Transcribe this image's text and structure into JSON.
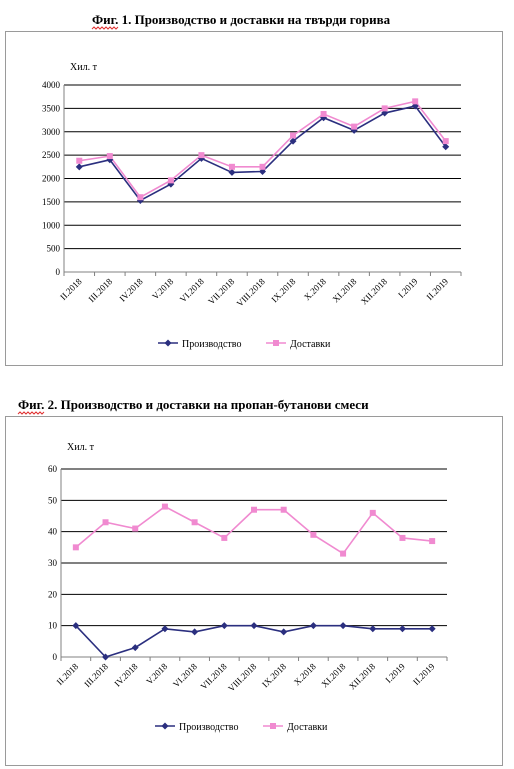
{
  "chart_data": [
    {
      "type": "line",
      "title": "Фиг. 1. Производство и доставки на твърди горива",
      "ylabel": "Хил. т",
      "categories": [
        "II.2018",
        "III.2018",
        "IV.2018",
        "V.2018",
        "VI.2018",
        "VII.2018",
        "VIII.2018",
        "IX.2018",
        "X.2018",
        "XI.2018",
        "XII.2018",
        "I.2019",
        "II.2019"
      ],
      "ylim": [
        0,
        4000
      ],
      "yticks": [
        0,
        500,
        1000,
        1500,
        2000,
        2500,
        3000,
        3500,
        4000
      ],
      "grid": true,
      "legend": "bottom",
      "series": [
        {
          "name": "Производство",
          "color": "#2b2f7f",
          "marker": "diamond",
          "values": [
            2250,
            2400,
            1530,
            1880,
            2430,
            2130,
            2150,
            2800,
            3300,
            3030,
            3400,
            3550,
            2680
          ]
        },
        {
          "name": "Доставки",
          "color": "#f08ad0",
          "marker": "square",
          "values": [
            2380,
            2480,
            1600,
            1960,
            2500,
            2250,
            2250,
            2920,
            3380,
            3110,
            3500,
            3650,
            2800
          ]
        }
      ]
    },
    {
      "type": "line",
      "title": "Фиг. 2. Производство и доставки на пропан-бутанови смеси",
      "ylabel": "Хил. т",
      "categories": [
        "II.2018",
        "III.2018",
        "IV.2018",
        "V.2018",
        "VI.2018",
        "VII.2018",
        "VIII.2018",
        "IX.2018",
        "X.2018",
        "XI.2018",
        "XII.2018",
        "I.2019",
        "II.2019"
      ],
      "ylim": [
        0,
        60
      ],
      "yticks": [
        0,
        10,
        20,
        30,
        40,
        50,
        60
      ],
      "grid": true,
      "legend": "bottom",
      "series": [
        {
          "name": "Производство",
          "color": "#2b2f7f",
          "marker": "diamond",
          "values": [
            10,
            0,
            3,
            9,
            8,
            10,
            10,
            8,
            10,
            10,
            9,
            9,
            9
          ]
        },
        {
          "name": "Доставки",
          "color": "#f08ad0",
          "marker": "square",
          "values": [
            35,
            43,
            41,
            48,
            43,
            38,
            47,
            47,
            39,
            33,
            46,
            38,
            37
          ]
        }
      ]
    }
  ]
}
